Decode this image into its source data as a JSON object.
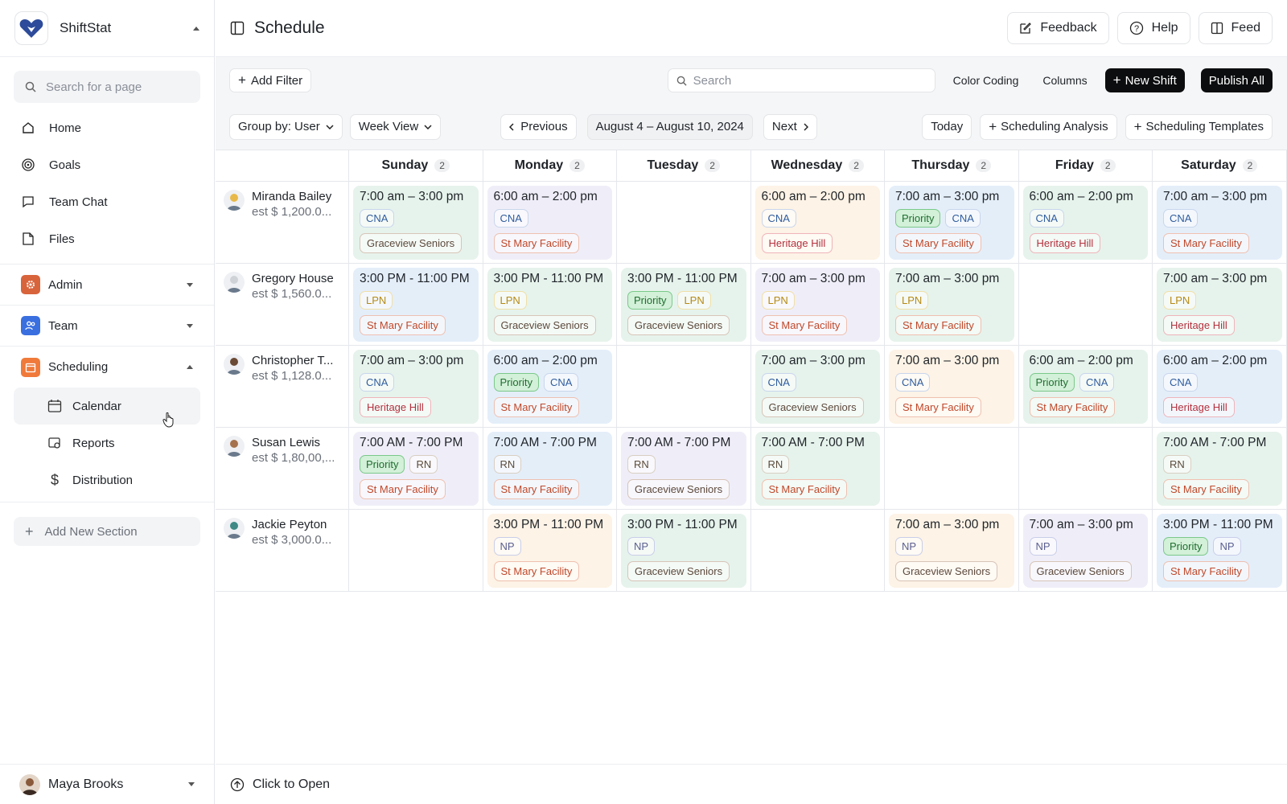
{
  "app": {
    "name": "ShiftStat"
  },
  "sidebar": {
    "search_placeholder": "Search for a page",
    "nav": [
      {
        "label": "Home",
        "icon": "home-icon"
      },
      {
        "label": "Goals",
        "icon": "target-icon"
      },
      {
        "label": "Team Chat",
        "icon": "chat-icon"
      },
      {
        "label": "Files",
        "icon": "file-icon"
      }
    ],
    "sections": {
      "admin": "Admin",
      "team": "Team",
      "scheduling": "Scheduling"
    },
    "sub_items": {
      "calendar": "Calendar",
      "reports": "Reports",
      "distribution": "Distribution"
    },
    "add_section": "Add New Section",
    "user": "Maya Brooks"
  },
  "header": {
    "title": "Schedule",
    "feedback": "Feedback",
    "help": "Help",
    "feed": "Feed"
  },
  "toolbar": {
    "add_filter": "Add Filter",
    "search_placeholder": "Search",
    "color_coding": "Color Coding",
    "columns": "Columns",
    "new_shift": "New Shift",
    "publish_all": "Publish All",
    "group_by": "Group by: User",
    "view": "Week View",
    "previous": "Previous",
    "date_range": "August 4 – August 10, 2024",
    "next": "Next",
    "today": "Today",
    "scheduling_analysis": "Scheduling Analysis",
    "scheduling_templates": "Scheduling Templates"
  },
  "days": [
    {
      "name": "Sunday",
      "count": "2"
    },
    {
      "name": "Monday",
      "count": "2"
    },
    {
      "name": "Tuesday",
      "count": "2"
    },
    {
      "name": "Wednesday",
      "count": "2"
    },
    {
      "name": "Thursday",
      "count": "2"
    },
    {
      "name": "Friday",
      "count": "2"
    },
    {
      "name": "Saturday",
      "count": "2"
    }
  ],
  "rows": [
    {
      "name": "Miranda Bailey",
      "est": "est $ 1,200.0...",
      "avatar_color": "#e8b94a",
      "shifts": [
        {
          "time": "7:00 am – 3:00 pm",
          "priority": false,
          "role": "CNA",
          "facility": "Graceview Seniors",
          "bg": "green"
        },
        {
          "time": "6:00 am – 2:00 pm",
          "priority": false,
          "role": "CNA",
          "facility": "St Mary Facility",
          "bg": "lav"
        },
        null,
        {
          "time": "6:00 am – 2:00 pm",
          "priority": false,
          "role": "CNA",
          "facility": "Heritage Hill",
          "bg": "peach"
        },
        {
          "time": "7:00 am – 3:00 pm",
          "priority": true,
          "role": "CNA",
          "facility": "St Mary Facility",
          "bg": "blue"
        },
        {
          "time": "6:00 am – 2:00 pm",
          "priority": false,
          "role": "CNA",
          "facility": "Heritage Hill",
          "bg": "green"
        },
        {
          "time": "7:00 am – 3:00 pm",
          "priority": false,
          "role": "CNA",
          "facility": "St Mary Facility",
          "bg": "blue"
        }
      ]
    },
    {
      "name": "Gregory House",
      "est": "est $ 1,560.0...",
      "avatar_color": "#cfd3d8",
      "shifts": [
        {
          "time": "3:00 PM - 11:00 PM",
          "priority": false,
          "role": "LPN",
          "facility": "St Mary Facility",
          "bg": "blue"
        },
        {
          "time": "3:00 PM - 11:00 PM",
          "priority": false,
          "role": "LPN",
          "facility": "Graceview Seniors",
          "bg": "green"
        },
        {
          "time": "3:00 PM - 11:00 PM",
          "priority": true,
          "role": "LPN",
          "facility": "Graceview Seniors",
          "bg": "green"
        },
        {
          "time": "7:00 am – 3:00 pm",
          "priority": false,
          "role": "LPN",
          "facility": "St Mary Facility",
          "bg": "lav"
        },
        {
          "time": "7:00 am – 3:00 pm",
          "priority": false,
          "role": "LPN",
          "facility": "St Mary Facility",
          "bg": "green"
        },
        null,
        {
          "time": "7:00 am – 3:00 pm",
          "priority": false,
          "role": "LPN",
          "facility": "Heritage Hill",
          "bg": "green"
        }
      ]
    },
    {
      "name": "Christopher T...",
      "est": "est $ 1,128.0...",
      "avatar_color": "#6b4a35",
      "shifts": [
        {
          "time": "7:00 am – 3:00 pm",
          "priority": false,
          "role": "CNA",
          "facility": "Heritage Hill",
          "bg": "green"
        },
        {
          "time": "6:00 am – 2:00 pm",
          "priority": true,
          "role": "CNA",
          "facility": "St Mary Facility",
          "bg": "blue"
        },
        null,
        {
          "time": "7:00 am – 3:00 pm",
          "priority": false,
          "role": "CNA",
          "facility": "Graceview Seniors",
          "bg": "green"
        },
        {
          "time": "7:00 am – 3:00 pm",
          "priority": false,
          "role": "CNA",
          "facility": "St Mary Facility",
          "bg": "peach"
        },
        {
          "time": "6:00 am – 2:00 pm",
          "priority": true,
          "role": "CNA",
          "facility": "St Mary Facility",
          "bg": "green"
        },
        {
          "time": "6:00 am – 2:00 pm",
          "priority": false,
          "role": "CNA",
          "facility": "Heritage Hill",
          "bg": "blue"
        }
      ]
    },
    {
      "name": "Susan Lewis",
      "est": "est $ 1,80,00,...",
      "avatar_color": "#a5724d",
      "shifts": [
        {
          "time": "7:00 AM - 7:00 PM",
          "priority": true,
          "role": "RN",
          "facility": "St Mary Facility",
          "bg": "lav"
        },
        {
          "time": "7:00 AM - 7:00 PM",
          "priority": false,
          "role": "RN",
          "facility": "St Mary Facility",
          "bg": "blue"
        },
        {
          "time": "7:00 AM - 7:00 PM",
          "priority": false,
          "role": "RN",
          "facility": "Graceview Seniors",
          "bg": "lav"
        },
        {
          "time": "7:00 AM - 7:00 PM",
          "priority": false,
          "role": "RN",
          "facility": "St Mary Facility",
          "bg": "green"
        },
        null,
        null,
        {
          "time": "7:00 AM - 7:00 PM",
          "priority": false,
          "role": "RN",
          "facility": "St Mary Facility",
          "bg": "green"
        }
      ]
    },
    {
      "name": "Jackie Peyton",
      "est": "est $ 3,000.0...",
      "avatar_color": "#3f8a86",
      "shifts": [
        null,
        {
          "time": "3:00 PM - 11:00 PM",
          "priority": false,
          "role": "NP",
          "facility": "St Mary Facility",
          "bg": "peach"
        },
        {
          "time": "3:00 PM - 11:00 PM",
          "priority": false,
          "role": "NP",
          "facility": "Graceview Seniors",
          "bg": "green"
        },
        null,
        {
          "time": "7:00 am – 3:00 pm",
          "priority": false,
          "role": "NP",
          "facility": "Graceview Seniors",
          "bg": "peach"
        },
        {
          "time": "7:00 am – 3:00 pm",
          "priority": false,
          "role": "NP",
          "facility": "Graceview Seniors",
          "bg": "lav"
        },
        {
          "time": "3:00 PM - 11:00 PM",
          "priority": true,
          "role": "NP",
          "facility": "St Mary Facility",
          "bg": "blue"
        }
      ]
    }
  ],
  "priority_label": "Priority",
  "footer": {
    "label": "Click to Open"
  },
  "colors": {
    "admin_icon": "#d8643c",
    "team_icon": "#3a6fe0",
    "scheduling_icon": "#f07a3a",
    "brand": "#2d4b9a"
  }
}
